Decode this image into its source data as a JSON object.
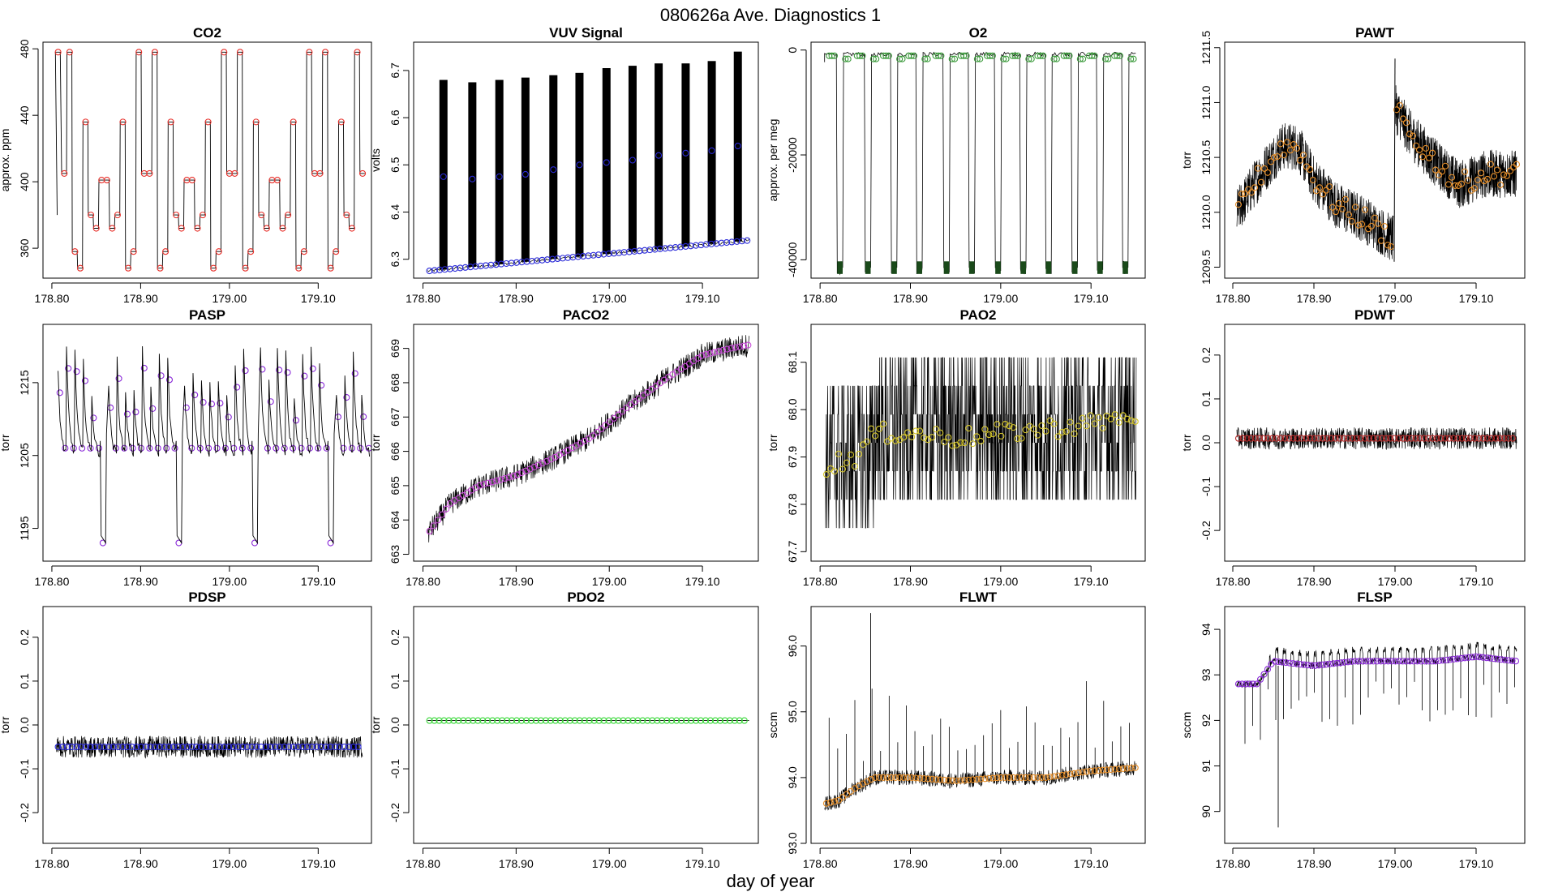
{
  "figure": {
    "title": "080626a   Ave. Diagnostics 1",
    "xlabel": "day of year"
  },
  "chart_data": [
    {
      "type": "line",
      "title": "CO2",
      "ylabel": "approx. ppm",
      "xlim": [
        178.79,
        179.16
      ],
      "ylim": [
        342,
        484
      ],
      "xticks": [
        178.8,
        178.9,
        179.0,
        179.1
      ],
      "xtick_labels": [
        "178.80",
        "178.90",
        "179.00",
        "179.10"
      ],
      "yticks": [
        360,
        400,
        440,
        480
      ],
      "ytick_labels": [
        "360",
        "400",
        "440",
        "480"
      ],
      "marker_color": "#e8302a",
      "line_color": "#000000",
      "series": [
        {
          "x": [
            178.807,
            178.814,
            178.82,
            178.826,
            178.832,
            178.838,
            178.844,
            178.85,
            178.856,
            178.862,
            178.868,
            178.874,
            178.88,
            178.886,
            178.892,
            178.898,
            178.904,
            178.91,
            178.916,
            178.922,
            178.928,
            178.934,
            178.94,
            178.946,
            178.952,
            178.958,
            178.964,
            178.97,
            178.976,
            178.982,
            178.988,
            178.994,
            179.0,
            179.006,
            179.012,
            179.018,
            179.024,
            179.03,
            179.036,
            179.042,
            179.048,
            179.054,
            179.06,
            179.066,
            179.072,
            179.078,
            179.084,
            179.09,
            179.096,
            179.102,
            179.108,
            179.114,
            179.12,
            179.126,
            179.132,
            179.138,
            179.144,
            179.15
          ],
          "y": [
            478,
            405,
            478,
            358,
            348,
            436,
            380,
            372,
            401,
            401,
            372,
            380,
            436,
            348,
            358,
            478,
            405,
            405,
            478,
            348,
            358,
            436,
            380,
            372,
            401,
            401,
            372,
            380,
            436,
            348,
            358,
            478,
            405,
            405,
            478,
            348,
            358,
            436,
            380,
            372,
            401,
            401,
            372,
            380,
            436,
            348,
            358,
            478,
            405,
            405,
            478,
            348,
            358,
            436,
            380,
            372,
            478,
            405
          ]
        }
      ]
    },
    {
      "type": "line",
      "title": "VUV Signal",
      "ylabel": "volts",
      "xlim": [
        178.79,
        179.16
      ],
      "ylim": [
        6.26,
        6.76
      ],
      "xticks": [
        178.8,
        178.9,
        179.0,
        179.1
      ],
      "xtick_labels": [
        "178.80",
        "178.90",
        "179.00",
        "179.10"
      ],
      "yticks": [
        6.3,
        6.4,
        6.5,
        6.6,
        6.7
      ],
      "ytick_labels": [
        "6.3",
        "6.4",
        "6.5",
        "6.6",
        "6.7"
      ],
      "marker_color": "#2a2ad8",
      "line_color": "#000000",
      "series": [
        {
          "name_hidden": true,
          "x": [
            178.822,
            178.853,
            178.882,
            178.91,
            178.94,
            178.968,
            178.997,
            179.025,
            179.053,
            179.082,
            179.11,
            179.138
          ],
          "y_top": [
            6.68,
            6.675,
            6.68,
            6.685,
            6.69,
            6.695,
            6.705,
            6.71,
            6.715,
            6.715,
            6.72,
            6.74
          ],
          "y_mid": [
            6.475,
            6.47,
            6.475,
            6.48,
            6.49,
            6.5,
            6.505,
            6.51,
            6.52,
            6.525,
            6.53,
            6.54
          ]
        },
        {
          "baseline_x": [
            178.805,
            179.15
          ],
          "baseline_y": [
            6.275,
            6.34
          ]
        }
      ]
    },
    {
      "type": "line",
      "title": "O2",
      "ylabel": "approx. per meg",
      "xlim": [
        178.79,
        179.16
      ],
      "ylim": [
        -43500,
        1500
      ],
      "xticks": [
        178.8,
        178.9,
        179.0,
        179.1
      ],
      "xtick_labels": [
        "178.80",
        "178.90",
        "179.00",
        "179.10"
      ],
      "yticks": [
        0,
        -20000,
        -40000
      ],
      "ytick_labels": [
        "0",
        "-20000",
        "-40000"
      ],
      "marker_color": "#3a9a3a",
      "line_color": "#000000",
      "series": [
        {
          "dips": [
            178.822,
            178.853,
            178.882,
            178.91,
            178.94,
            178.968,
            178.997,
            179.025,
            179.053,
            179.082,
            179.11,
            179.138
          ],
          "high": -800,
          "low": -41500
        }
      ]
    },
    {
      "type": "line",
      "title": "PAWT",
      "ylabel": "torr",
      "xlim": [
        178.79,
        179.16
      ],
      "ylim": [
        1209.4,
        1211.55
      ],
      "xticks": [
        178.8,
        178.9,
        179.0,
        179.1
      ],
      "xtick_labels": [
        "178.80",
        "178.90",
        "179.00",
        "179.10"
      ],
      "yticks": [
        1209.5,
        1210.0,
        1210.5,
        1211.0,
        1211.5
      ],
      "ytick_labels": [
        "1209.5",
        "1210.0",
        "1210.5",
        "1211.0",
        "1211.5"
      ],
      "marker_color": "#e8902a",
      "line_color": "#000000",
      "series": [
        {
          "segments": [
            {
              "x": [
                178.805,
                178.83,
                178.86,
                178.88,
                178.9,
                178.93,
                178.96,
                178.998
              ],
              "y": [
                1210.0,
                1210.3,
                1210.6,
                1210.6,
                1210.3,
                1210.05,
                1209.95,
                1209.75
              ]
            },
            {
              "x": [
                179.0,
                179.02,
                179.05,
                179.08,
                179.11,
                179.15
              ],
              "y": [
                1210.95,
                1210.7,
                1210.45,
                1210.25,
                1210.35,
                1210.35
              ]
            }
          ],
          "noise": 0.4
        }
      ]
    },
    {
      "type": "line",
      "title": "PASP",
      "ylabel": "torr",
      "xlim": [
        178.79,
        179.16
      ],
      "ylim": [
        1190.5,
        1223
      ],
      "xticks": [
        178.8,
        178.9,
        179.0,
        179.1
      ],
      "xtick_labels": [
        "178.80",
        "178.90",
        "179.00",
        "179.10"
      ],
      "yticks": [
        1195,
        1205,
        1215
      ],
      "ytick_labels": [
        "1195",
        "1205",
        "1215"
      ],
      "marker_color": "#8a2ad8",
      "line_color": "#000000",
      "series": [
        {
          "deep_dips": [
            178.853,
            178.94,
            179.025,
            179.11
          ],
          "deep_low": 1193,
          "base": 1207
        }
      ]
    },
    {
      "type": "line",
      "title": "PACO2",
      "ylabel": "torr",
      "xlim": [
        178.79,
        179.16
      ],
      "ylim": [
        662.8,
        669.7
      ],
      "xticks": [
        178.8,
        178.9,
        179.0,
        179.1
      ],
      "xtick_labels": [
        "178.80",
        "178.90",
        "179.00",
        "179.10"
      ],
      "yticks": [
        663,
        664,
        665,
        666,
        667,
        668,
        669
      ],
      "ytick_labels": [
        "663",
        "664",
        "665",
        "666",
        "667",
        "668",
        "669"
      ],
      "marker_color": "#c84ad8",
      "line_color": "#000000",
      "series": [
        {
          "x": [
            178.805,
            178.83,
            178.86,
            178.9,
            178.94,
            178.98,
            179.02,
            179.06,
            179.1,
            179.13,
            179.15
          ],
          "y": [
            663.6,
            664.5,
            665.0,
            665.3,
            665.8,
            666.4,
            667.3,
            668.1,
            668.8,
            669.0,
            669.1
          ]
        }
      ]
    },
    {
      "type": "line",
      "title": "PAO2",
      "ylabel": "torr",
      "xlim": [
        178.79,
        179.16
      ],
      "ylim": [
        67.68,
        68.18
      ],
      "xticks": [
        178.8,
        178.9,
        179.0,
        179.1
      ],
      "xtick_labels": [
        "178.80",
        "178.90",
        "179.00",
        "179.10"
      ],
      "yticks": [
        67.7,
        67.8,
        67.9,
        68.0,
        68.1
      ],
      "ytick_labels": [
        "67.7",
        "67.8",
        "67.9",
        "68.0",
        "68.1"
      ],
      "marker_color": "#d8c82a",
      "line_color": "#000000",
      "series": [
        {
          "x": [
            178.805,
            178.82,
            178.84,
            178.86,
            178.9,
            178.95,
            179.0,
            179.05,
            179.1,
            179.15
          ],
          "y": [
            67.87,
            67.89,
            67.9,
            67.95,
            67.95,
            67.94,
            67.95,
            67.96,
            67.97,
            67.99
          ]
        }
      ]
    },
    {
      "type": "line",
      "title": "PDWT",
      "ylabel": "torr",
      "xlim": [
        178.79,
        179.16
      ],
      "ylim": [
        -0.27,
        0.27
      ],
      "xticks": [
        178.8,
        178.9,
        179.0,
        179.1
      ],
      "xtick_labels": [
        "178.80",
        "178.90",
        "179.00",
        "179.10"
      ],
      "yticks": [
        -0.2,
        -0.1,
        0.0,
        0.1,
        0.2
      ],
      "ytick_labels": [
        "-0.2",
        "-0.1",
        "0.0",
        "0.1",
        "0.2"
      ],
      "marker_color": "#b82a2a",
      "line_color": "#000000",
      "series": [
        {
          "level": 0.01,
          "noise": 0.025
        }
      ]
    },
    {
      "type": "line",
      "title": "PDSP",
      "ylabel": "torr",
      "xlim": [
        178.79,
        179.16
      ],
      "ylim": [
        -0.27,
        0.27
      ],
      "xticks": [
        178.8,
        178.9,
        179.0,
        179.1
      ],
      "xtick_labels": [
        "178.80",
        "178.90",
        "179.00",
        "179.10"
      ],
      "yticks": [
        -0.2,
        -0.1,
        0.0,
        0.1,
        0.2
      ],
      "ytick_labels": [
        "-0.2",
        "-0.1",
        "0.0",
        "0.1",
        "0.2"
      ],
      "marker_color": "#2a2ad8",
      "line_color": "#000000",
      "series": [
        {
          "level": -0.05,
          "noise": 0.025
        }
      ]
    },
    {
      "type": "line",
      "title": "PDO2",
      "ylabel": "torr",
      "xlim": [
        178.79,
        179.16
      ],
      "ylim": [
        -0.27,
        0.27
      ],
      "xticks": [
        178.8,
        178.9,
        179.0,
        179.1
      ],
      "xtick_labels": [
        "178.80",
        "178.90",
        "179.00",
        "179.10"
      ],
      "yticks": [
        -0.2,
        -0.1,
        0.0,
        0.1,
        0.2
      ],
      "ytick_labels": [
        "-0.2",
        "-0.1",
        "0.0",
        "0.1",
        "0.2"
      ],
      "marker_color": "#3ad83a",
      "line_color": "#000000",
      "series": [
        {
          "level": 0.01,
          "noise": 0.0
        }
      ]
    },
    {
      "type": "line",
      "title": "FLWT",
      "ylabel": "sccm",
      "xlim": [
        178.79,
        179.16
      ],
      "ylim": [
        93.0,
        96.6
      ],
      "xticks": [
        178.8,
        178.9,
        179.0,
        179.1
      ],
      "xtick_labels": [
        "178.80",
        "178.90",
        "179.00",
        "179.10"
      ],
      "yticks": [
        93.0,
        94.0,
        95.0,
        96.0
      ],
      "ytick_labels": [
        "93.0",
        "94.0",
        "95.0",
        "96.0"
      ],
      "marker_color": "#e8902a",
      "line_color": "#000000",
      "series": [
        {
          "x": [
            178.805,
            178.82,
            178.84,
            178.86,
            178.9,
            178.95,
            179.0,
            179.05,
            179.1,
            179.15
          ],
          "y": [
            93.6,
            93.65,
            93.85,
            94.0,
            94.0,
            93.95,
            94.0,
            94.0,
            94.1,
            94.15
          ],
          "spike_max": 96.5,
          "spike_x": 178.856
        }
      ]
    },
    {
      "type": "line",
      "title": "FLSP",
      "ylabel": "sccm",
      "xlim": [
        178.79,
        179.16
      ],
      "ylim": [
        89.3,
        94.5
      ],
      "xticks": [
        178.8,
        178.9,
        179.0,
        179.1
      ],
      "xtick_labels": [
        "178.80",
        "178.90",
        "179.00",
        "179.10"
      ],
      "yticks": [
        90,
        91,
        92,
        93,
        94
      ],
      "ytick_labels": [
        "90",
        "91",
        "92",
        "93",
        "94"
      ],
      "marker_color": "#8a2ad8",
      "line_color": "#000000",
      "series": [
        {
          "x": [
            178.805,
            178.83,
            178.85,
            178.9,
            178.95,
            179.0,
            179.05,
            179.1,
            179.15
          ],
          "y": [
            92.8,
            92.8,
            93.3,
            93.2,
            93.3,
            93.3,
            93.3,
            93.4,
            93.3
          ],
          "spike_min": 89.65,
          "spike_x": 178.856
        }
      ]
    }
  ]
}
